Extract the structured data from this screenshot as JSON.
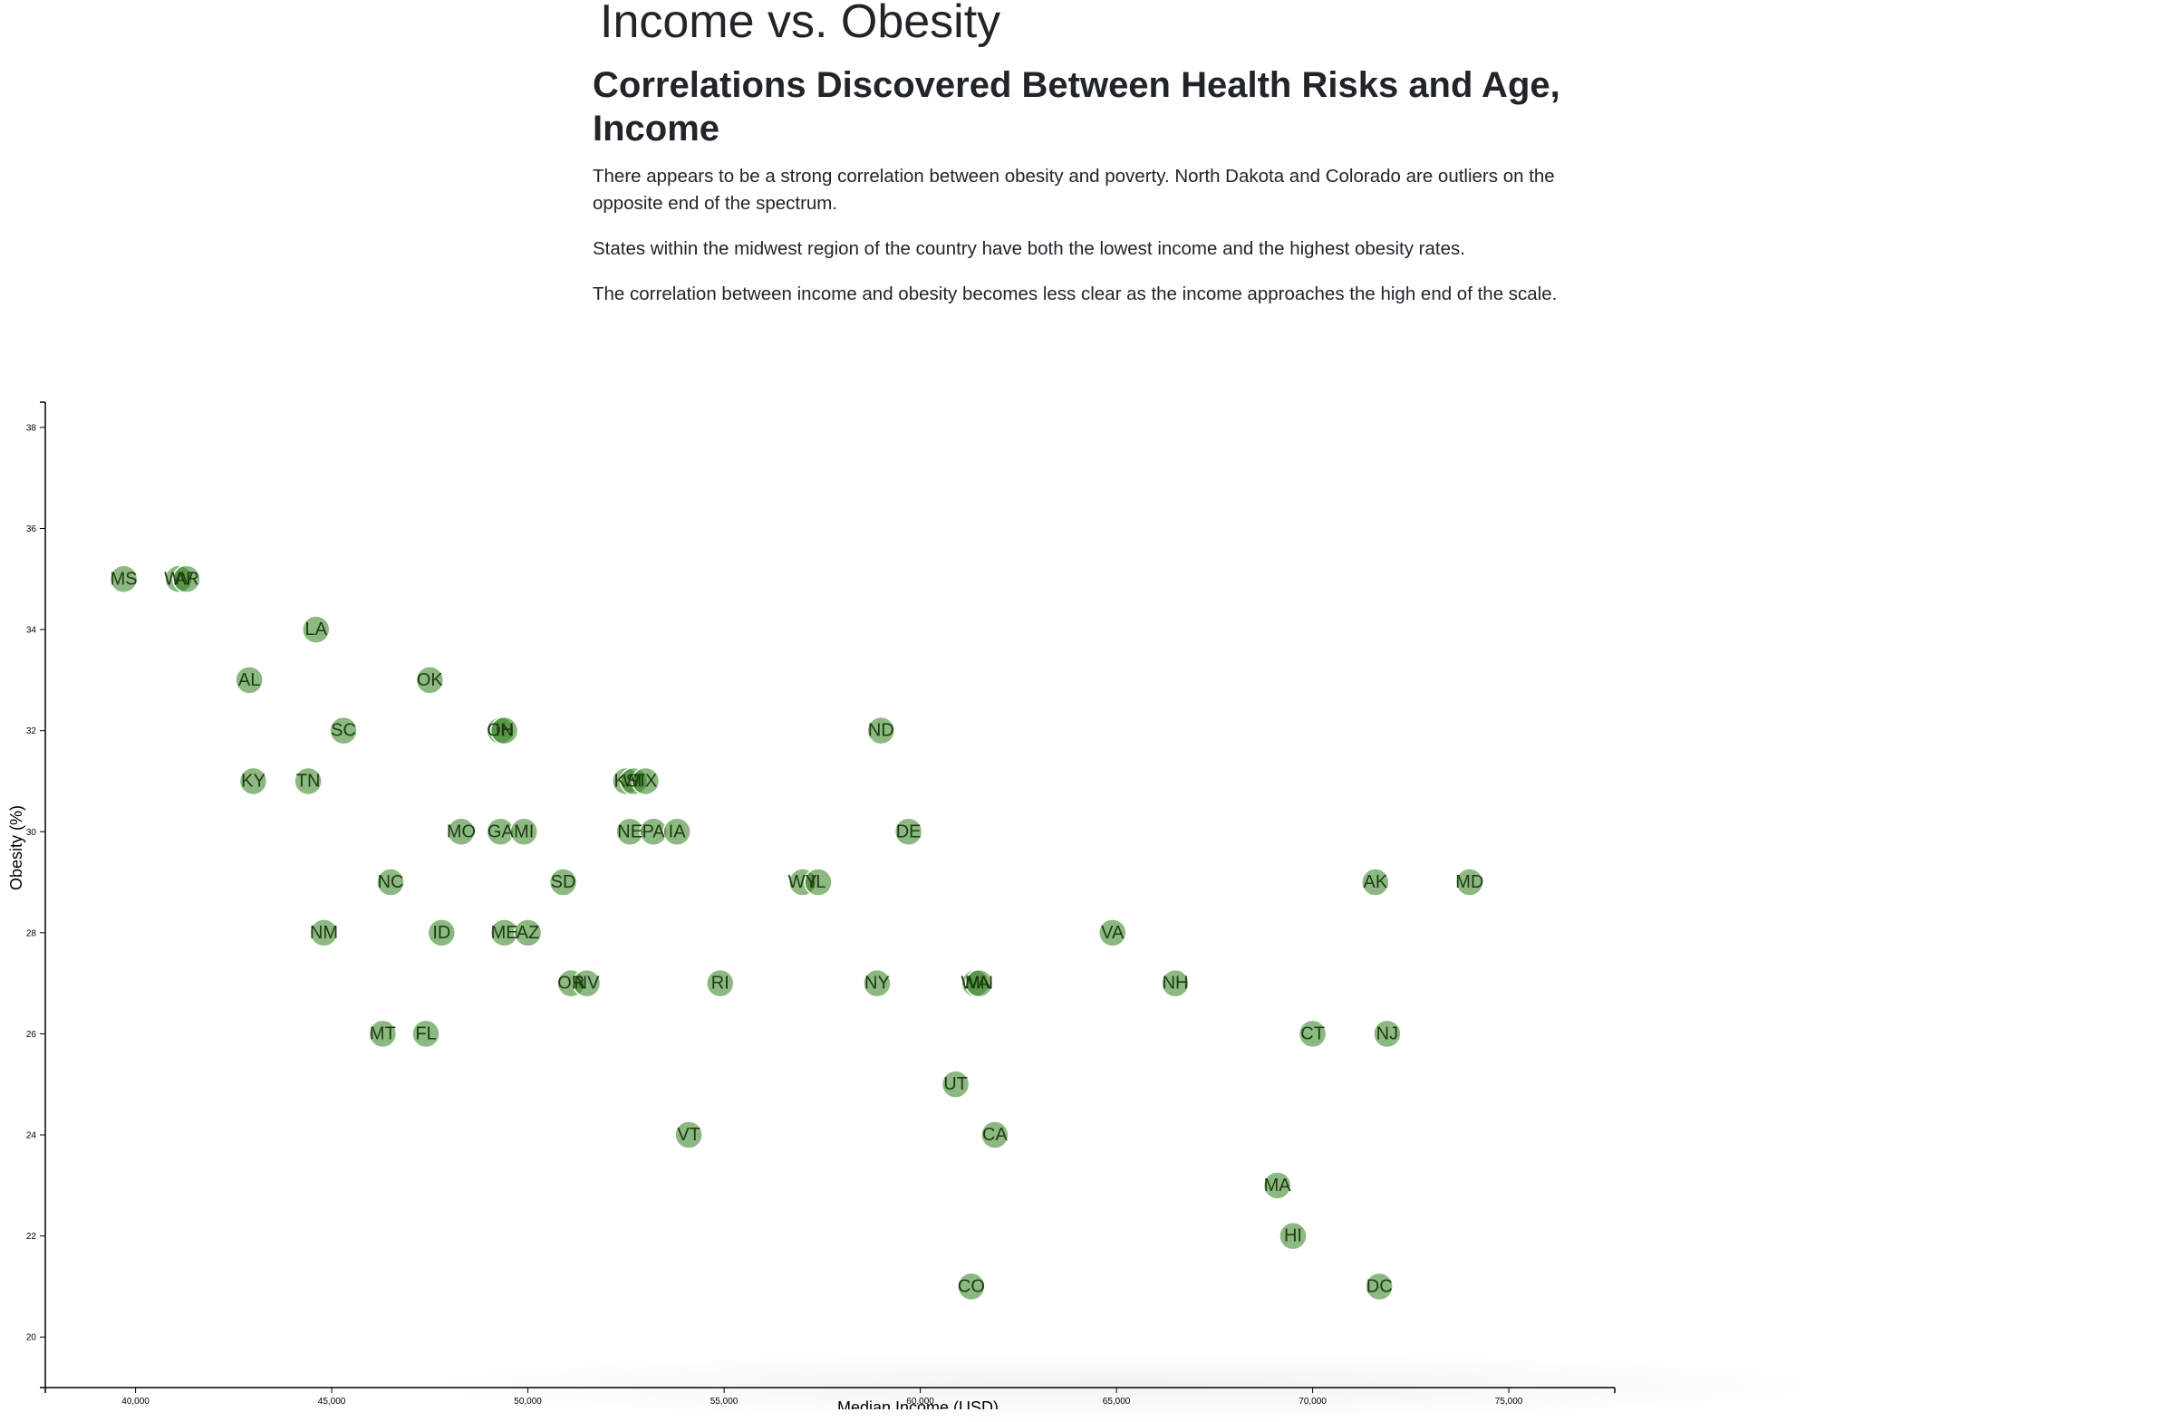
{
  "page": {
    "title": "Income vs. Obesity",
    "subtitle": "Correlations Discovered Between Health Risks and Age, Income",
    "paragraphs": [
      "There appears to be a strong correlation between obesity and poverty. North Dakota and Colorado are outliers on the opposite end of the spectrum.",
      "States within the midwest region of the country have both the lowest income and the highest obesity rates.",
      "The correlation between income and obesity becomes less clear as the income approaches the high end of the scale."
    ]
  },
  "colors": {
    "marker": "#2e7d1a",
    "marker_text": "#1f3a12"
  },
  "chart_data": {
    "type": "scatter",
    "xlabel": "Median Income (USD)",
    "ylabel": "Obesity (%)",
    "xlim": [
      37700,
      77700
    ],
    "ylim": [
      19,
      38.5
    ],
    "xticks": [
      40000,
      45000,
      50000,
      55000,
      60000,
      65000,
      70000,
      75000
    ],
    "xtick_labels": [
      "40,000",
      "45,000",
      "50,000",
      "55,000",
      "60,000",
      "65,000",
      "70,000",
      "75,000"
    ],
    "yticks": [
      20,
      22,
      24,
      26,
      28,
      30,
      32,
      34,
      36,
      38
    ],
    "ytick_labels": [
      "20",
      "22",
      "24",
      "26",
      "28",
      "30",
      "32",
      "34",
      "36",
      "38"
    ],
    "points": [
      {
        "label": "MS",
        "x": 39700,
        "y": 35
      },
      {
        "label": "WV",
        "x": 41100,
        "y": 35
      },
      {
        "label": "AR",
        "x": 41300,
        "y": 35
      },
      {
        "label": "LA",
        "x": 44600,
        "y": 34
      },
      {
        "label": "AL",
        "x": 42900,
        "y": 33
      },
      {
        "label": "OK",
        "x": 47500,
        "y": 33
      },
      {
        "label": "SC",
        "x": 45300,
        "y": 32
      },
      {
        "label": "OH",
        "x": 49300,
        "y": 32
      },
      {
        "label": "IN",
        "x": 49400,
        "y": 32
      },
      {
        "label": "ND",
        "x": 59000,
        "y": 32
      },
      {
        "label": "KY",
        "x": 43000,
        "y": 31
      },
      {
        "label": "TN",
        "x": 44400,
        "y": 31
      },
      {
        "label": "KS",
        "x": 52500,
        "y": 31
      },
      {
        "label": "WI",
        "x": 52700,
        "y": 31
      },
      {
        "label": "TX",
        "x": 53000,
        "y": 31
      },
      {
        "label": "MO",
        "x": 48300,
        "y": 30
      },
      {
        "label": "GA",
        "x": 49300,
        "y": 30
      },
      {
        "label": "MI",
        "x": 49900,
        "y": 30
      },
      {
        "label": "NE",
        "x": 52600,
        "y": 30
      },
      {
        "label": "PA",
        "x": 53200,
        "y": 30
      },
      {
        "label": "IA",
        "x": 53800,
        "y": 30
      },
      {
        "label": "DE",
        "x": 59700,
        "y": 30
      },
      {
        "label": "NC",
        "x": 46500,
        "y": 29
      },
      {
        "label": "SD",
        "x": 50900,
        "y": 29
      },
      {
        "label": "WY",
        "x": 57000,
        "y": 29
      },
      {
        "label": "IL",
        "x": 57400,
        "y": 29
      },
      {
        "label": "AK",
        "x": 71600,
        "y": 29
      },
      {
        "label": "MD",
        "x": 74000,
        "y": 29
      },
      {
        "label": "NM",
        "x": 44800,
        "y": 28
      },
      {
        "label": "ID",
        "x": 47800,
        "y": 28
      },
      {
        "label": "ME",
        "x": 49400,
        "y": 28
      },
      {
        "label": "AZ",
        "x": 50000,
        "y": 28
      },
      {
        "label": "VA",
        "x": 64900,
        "y": 28
      },
      {
        "label": "OR",
        "x": 51100,
        "y": 27
      },
      {
        "label": "NV",
        "x": 51500,
        "y": 27
      },
      {
        "label": "RI",
        "x": 54900,
        "y": 27
      },
      {
        "label": "NY",
        "x": 58900,
        "y": 27
      },
      {
        "label": "WA",
        "x": 61400,
        "y": 27
      },
      {
        "label": "MN",
        "x": 61500,
        "y": 27
      },
      {
        "label": "NH",
        "x": 66500,
        "y": 27
      },
      {
        "label": "MT",
        "x": 46300,
        "y": 26
      },
      {
        "label": "FL",
        "x": 47400,
        "y": 26
      },
      {
        "label": "CT",
        "x": 70000,
        "y": 26
      },
      {
        "label": "NJ",
        "x": 71900,
        "y": 26
      },
      {
        "label": "UT",
        "x": 60900,
        "y": 25
      },
      {
        "label": "VT",
        "x": 54100,
        "y": 24
      },
      {
        "label": "CA",
        "x": 61900,
        "y": 24
      },
      {
        "label": "MA",
        "x": 69100,
        "y": 23
      },
      {
        "label": "HI",
        "x": 69500,
        "y": 22
      },
      {
        "label": "CO",
        "x": 61300,
        "y": 21
      },
      {
        "label": "DC",
        "x": 71700,
        "y": 21
      }
    ]
  }
}
